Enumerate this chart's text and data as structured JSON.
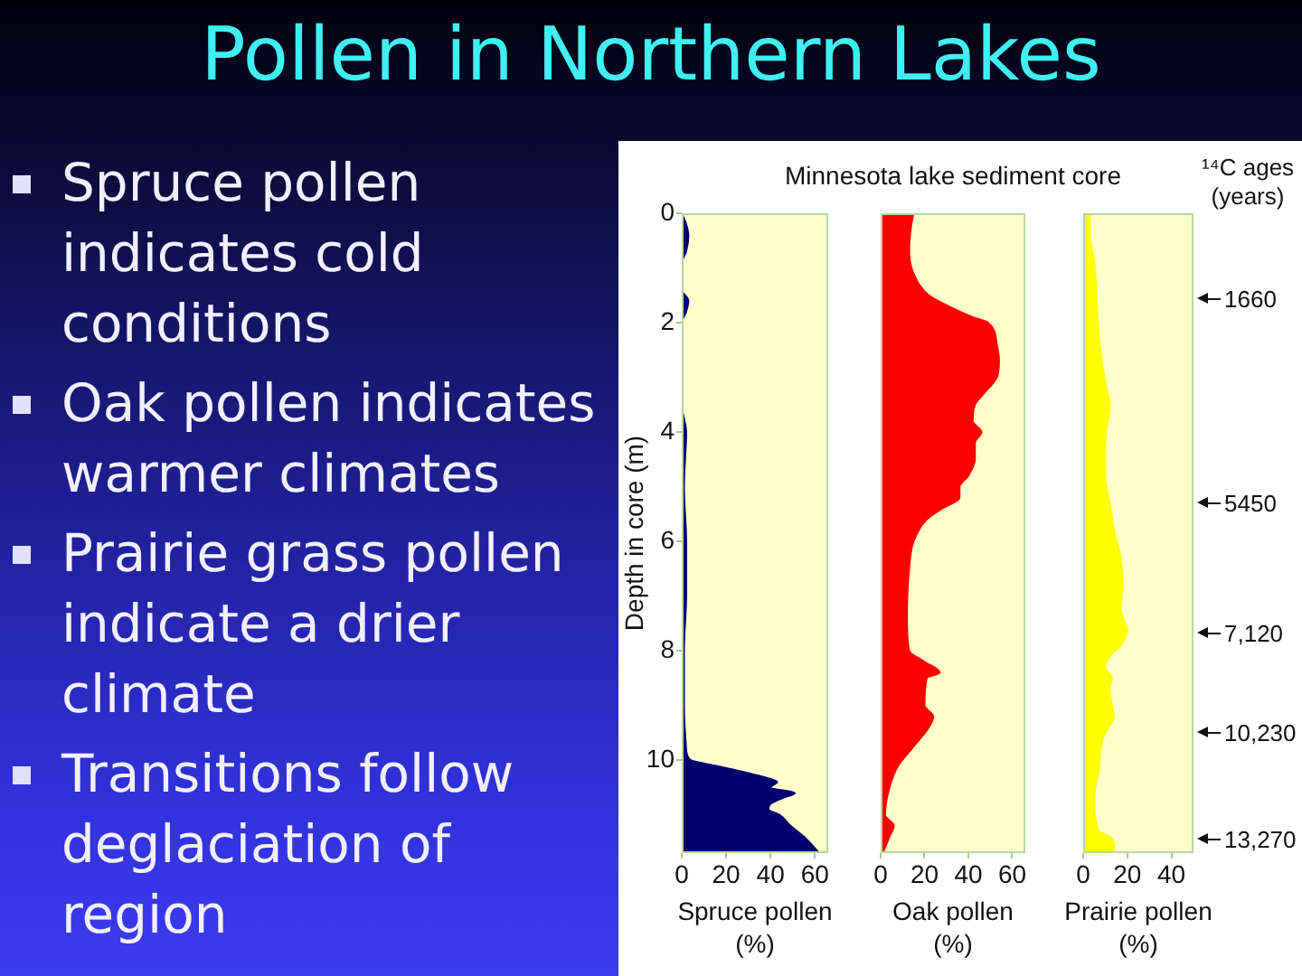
{
  "chart_data": [
    {
      "type": "other",
      "title": "Pollen in Northern Lakes",
      "annotations": [
        "Spruce pollen indicates cold conditions",
        "Oak pollen indicates warmer climates",
        "Prairie grass pollen indicate a drier climate",
        "Transitions follow deglaciation of region"
      ]
    },
    {
      "type": "area",
      "orientation": "horizontal",
      "xlabel": "Spruce pollen (%)",
      "ylabel": "Depth in core (m)",
      "color": "#000070",
      "xlim": [
        0,
        66
      ],
      "xticks": [
        0,
        20,
        40,
        60
      ],
      "ylim": [
        11.7,
        0
      ],
      "yticks": [
        0,
        2,
        4,
        6,
        8,
        10
      ],
      "x": [
        0,
        0.2,
        0.4,
        0.7,
        0.9,
        1.4,
        1.6,
        1.8,
        2.0,
        3.5,
        4.0,
        5.0,
        6.0,
        7.0,
        8.0,
        9.0,
        9.8,
        10.0,
        10.1,
        10.2,
        10.3,
        10.4,
        10.5,
        10.6,
        10.7,
        10.8,
        10.9,
        11.0,
        11.2,
        11.4,
        11.7
      ],
      "values": [
        0,
        2,
        3,
        2,
        0,
        0,
        3,
        2,
        0,
        0,
        2,
        1,
        2,
        2,
        1,
        1,
        2,
        4,
        15,
        26,
        36,
        43,
        40,
        51,
        45,
        40,
        39,
        44,
        49,
        55,
        62
      ]
    },
    {
      "type": "area",
      "orientation": "horizontal",
      "subtitle": "Minnesota lake sediment core",
      "xlabel": "Oak pollen (%)",
      "color": "#ff0000",
      "xlim": [
        0,
        66
      ],
      "xticks": [
        0,
        20,
        40,
        60
      ],
      "ylim": [
        11.7,
        0
      ],
      "tick_labels": "x",
      "x": [
        0,
        0.2,
        0.7,
        1.1,
        1.5,
        1.7,
        1.9,
        2.0,
        2.4,
        2.7,
        3.0,
        3.3,
        3.5,
        3.8,
        4.0,
        4.2,
        4.5,
        4.8,
        5.0,
        5.2,
        5.4,
        5.6,
        6.0,
        6.5,
        7.4,
        8.0,
        8.2,
        8.4,
        8.5,
        9.0,
        9.2,
        9.4,
        9.8,
        10.1,
        10.5,
        11.0,
        11.2,
        11.4,
        11.7
      ],
      "values": [
        15,
        14,
        13,
        15,
        22,
        31,
        42,
        49,
        53,
        54,
        53,
        47,
        43,
        42,
        46,
        43,
        43,
        40,
        36,
        36,
        28,
        21,
        15,
        13,
        12,
        13,
        20,
        27,
        21,
        20,
        24,
        22,
        14,
        8,
        4,
        2,
        6,
        4,
        1
      ]
    },
    {
      "type": "area",
      "orientation": "horizontal",
      "xlabel": "Prairie pollen (%)",
      "color": "#ffff00",
      "xlim": [
        0,
        50
      ],
      "xticks": [
        0,
        20,
        40
      ],
      "ylim": [
        11.7,
        0
      ],
      "tick_labels": "x",
      "x": [
        0,
        0.4,
        0.9,
        1.5,
        2.2,
        3.1,
        3.5,
        4.2,
        4.8,
        5.3,
        5.8,
        6.3,
        6.8,
        7.2,
        7.4,
        7.6,
        7.9,
        8.1,
        8.3,
        8.5,
        8.7,
        9.0,
        9.2,
        9.3,
        9.6,
        10.2,
        10.7,
        11.3,
        11.4,
        11.6,
        11.7
      ],
      "values": [
        3,
        3,
        5,
        6,
        7,
        10,
        12,
        10,
        10,
        12,
        14,
        17,
        18,
        17,
        18,
        20,
        17,
        12,
        10,
        13,
        12,
        13,
        14,
        13,
        9,
        7,
        5,
        7,
        12,
        14,
        14
      ],
      "annotations": [
        "¹⁴C ages (years)",
        "1660",
        "5450",
        "7,120",
        "10,230",
        "13,270"
      ]
    }
  ]
}
